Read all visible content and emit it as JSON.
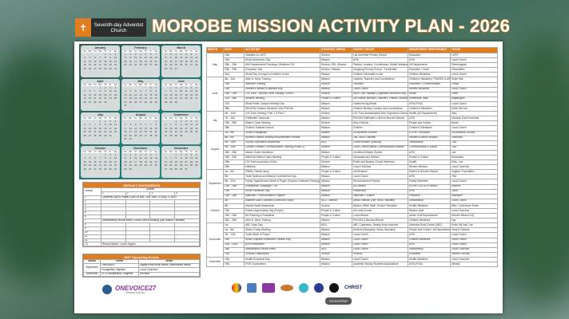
{
  "header": {
    "logo_text": "Seventh-day Adventist Church",
    "title": "MOROBE MISSION ACTIVITY PLAN - 2026"
  },
  "calendar": {
    "weekdays": [
      "Su",
      "Mo",
      "Tu",
      "We",
      "Th",
      "Fr",
      "Sa"
    ],
    "months": [
      {
        "name": "January",
        "start": 4,
        "days": 31
      },
      {
        "name": "February",
        "start": 0,
        "days": 28
      },
      {
        "name": "March",
        "start": 0,
        "days": 31
      },
      {
        "name": "April",
        "start": 3,
        "days": 30
      },
      {
        "name": "May",
        "start": 5,
        "days": 31
      },
      {
        "name": "June",
        "start": 1,
        "days": 30
      },
      {
        "name": "July",
        "start": 3,
        "days": 31
      },
      {
        "name": "August",
        "start": 6,
        "days": 31
      },
      {
        "name": "September",
        "start": 2,
        "days": 30
      },
      {
        "name": "October",
        "start": 4,
        "days": 31
      },
      {
        "name": "November",
        "start": 0,
        "days": 30
      },
      {
        "name": "December",
        "start": 2,
        "days": 31
      }
    ]
  },
  "default_days": {
    "title": "DEFAULT DAYS/WEEKS",
    "lesson_label": "Lesson",
    "quarter_label": "Quarter",
    "quarters": [
      "1",
      "2",
      "3",
      "4"
    ],
    "rows": [
      "Quarterly Day of Prayer (Qtrs 28 Mar; 14th June; 31 Aug; 21 Nov)",
      "",
      "",
      "",
      "",
      "",
      "Stewardship Revival week | Local Church Auditing (Lae District, Nawaeb)",
      "",
      "",
      "",
      "",
      "",
      "Revival Week / Lord's Supper"
    ]
  },
  "upcoming": {
    "title": "2027 Upcoming Events",
    "headers": [
      "Month",
      "Event",
      "Venue"
    ],
    "rows": [
      {
        "month": "September",
        "event": "OneVoice27",
        "venue": "Digital/Print/Social Media, Mainstream Media"
      },
      {
        "month": "",
        "event": "Evangelism, Baptism",
        "venue": "Local Churches"
      },
      {
        "month": "December",
        "event": "ECS Discipleship Congress",
        "venue": "Bomana"
      }
    ]
  },
  "onevoice": {
    "name": "ONEVOICE27",
    "tagline": "MISSION FOR ALL"
  },
  "table": {
    "headers": [
      "MONTH",
      "DATE",
      "ACTIVITIES",
      "STRATEGY ARENA",
      "TARGET GROUP",
      "DEPARTMENT RESPONSIBLE",
      "VENUE"
    ],
    "groups": [
      {
        "month": "May",
        "rows": [
          [
            "12th",
            "Visitation to LAPS",
            "Service",
            "Lae Adventist Primary School",
            "Education",
            "LAPS"
          ],
          [
            "16th",
            "World Adventurer Day",
            "Mission",
            "AYM",
            "AYM",
            "Local Church"
          ],
          [
            "18th - 20th",
            "AIM Departmental Trainings ( Markham 7&)",
            "Service, NDL, Mission",
            "Pastors, Leaders, Coordinators, Health Ambassadors",
            "All Departments",
            "Sirimengaran"
          ],
          [
            "20th - 29th",
            "Education Visit",
            "Service / Mission",
            "Sangiang Primary School - Finschaffen",
            "Education / Youth",
            "Finschaffen"
          ],
          [
            "31st",
            "World Day of prayer for children at risk",
            "Mission",
            "Children Vulnerable to risk",
            "Children Ministries",
            "Local Church"
          ]
        ]
      },
      {
        "month": "June",
        "rows": [
          [
            "8th - 11th",
            "Alive in Jesus Training",
            "Mission",
            "Leaders, Teachers and Coordinators",
            "Children's Ministries / PMS/DS & AIM",
            "Smile Hall"
          ],
          [
            "13th",
            "Inservice Training",
            "Service",
            "Teachers",
            "Education / Communication",
            "Virtual"
          ],
          [
            "13th",
            "Women's Ministry Emphasis Day",
            "Mission",
            "Local Church",
            "Women Ministries",
            "Local Church"
          ],
          [
            "15th - 19th",
            "10X Train - Second Level Training / Level 2",
            "Service",
            "Huon, Lae, Nawaeb (Organised churches only)",
            "Health",
            "Smile"
          ],
          [
            "21st - 26th",
            "Workers Meeting",
            "People & Culture",
            "All Fulltime Workers (Teachers, Pastors, Ministers)",
            "Secretariat Team",
            "Bagtangwei"
          ],
          [
            "27th",
            "World Public Campus Ministry Day",
            "Mission",
            "Youths/Young Adults",
            "AYM (PCM)",
            "Local Church"
          ],
          [
            "28th",
            "SEASON Children Ministries Visit PNGUM",
            "Mission",
            "Children Ministry Leaders and Coordinators",
            "Children's Ministries",
            "Smile 4M Hall"
          ]
        ]
      },
      {
        "month": "July",
        "rows": [
          [
            "6th - 10th",
            "10X Train Training / Part 1 & Part 2",
            "Service",
            "10X Train Ambassadors from Organized Churches",
            "Health (All Departments)",
            "Wau"
          ],
          [
            "7th - 11th",
            "Pathfinder Camporee",
            "Mission",
            "PNGUM Pathfinder Loft from Morobe Mission",
            "AYM",
            "Morasia, East Indonesia"
          ],
          [
            "20th - 25th",
            "District Camp Meeting",
            "Service",
            "Wau & Bulolo",
            "People and Culture",
            "Bulolo"
          ],
          [
            "25th",
            "Children Sabbath School",
            "Mission",
            "Children",
            "Children's Ministries",
            "Local Church"
          ]
        ]
      },
      {
        "month": "August",
        "rows": [
          [
            "3rd - 8th",
            "School Evangelism",
            "Mission",
            "All Adventist Schools",
            "EGPM / Education",
            "All Adventist Schools"
          ],
          [
            "6th - 8th",
            "Women/Children Ministry Empowerment Retreat",
            "Mission",
            "Lae, Huon, Nawaeb",
            "Women/Children Ministry",
            "Gabensis"
          ],
          [
            "9th - 16th",
            "Cocoa Corporation Awareness",
            "NDC",
            "Cocoa farmers (Districts)",
            "Stewardship",
            "TBA"
          ],
          [
            "9th - 14th",
            "Content Creation Communication Training (Phase 1)",
            "Service",
            "Local Church/District Communication leaders",
            "Communication & Media",
            "TBA"
          ],
          [
            "16th - 18th",
            "Master Guide Investiture",
            "Mission",
            "Combined Master Guides",
            "AYM",
            "Lae"
          ],
          [
            "16th - 20th",
            "MMAGW District Camp Meeting",
            "People & Culture",
            "Morawaka and Zimbari",
            "People & Culture",
            "Morawaka"
          ],
          [
            "29th",
            "10X Train launching in Eriku",
            "Service",
            "Public and Nearby Church Members",
            "Health",
            "Eriku, Lae"
          ],
          [
            "29th",
            "enditnow",
            "Mission",
            "Local Churches",
            "Women Ministry",
            "Local Churches"
          ]
        ]
      },
      {
        "month": "September",
        "rows": [
          [
            "1st - 5th",
            "FIBIDU District camp",
            "People & Culture",
            "All Members",
            "District & Morobe Mission",
            "Sagilas, Finschaffen"
          ],
          [
            "5th",
            "Youth Spiritual and Mission Commitment Day",
            "Mission",
            "Local Church",
            "AYM",
            "TBA"
          ],
          [
            "6th - 12th",
            "Family Togetherness Week of Prayer (Pastors Celebrant Training)",
            "Mission",
            "Recommended Pastors",
            "Family Ministries",
            "Local Church"
          ],
          [
            "13th - 26th",
            "Evangelistic Campaign / TBI",
            "Mission",
            "All Districts",
            "EGPM / EDCs & Pastors",
            "Districts"
          ],
          [
            "19th",
            "World Pathfinder Day",
            "Mission",
            "Pathfinders",
            "AYM",
            "Local"
          ],
          [
            "20th - 26th",
            "Markham 1 Reconciliation Program",
            "Mission",
            "Markham 1 District",
            "President",
            "Antiragen"
          ]
        ]
      },
      {
        "month": "October",
        "rows": [
          [
            "4th",
            "Baseline Data Collection (Livelihood Skills)",
            "NDC / Mission",
            "Urban Districts (Lae, Huon, Nawaeb)",
            "Stewardship",
            "Local Church"
          ],
          [
            "8th",
            "Mental Health Awareness",
            "Service",
            "Mission Office Staff / School Principals",
            "Health Ministries",
            "Mille, Conference Room"
          ],
          [
            "10th",
            "Pastors Appreciation day (Prayer)",
            "People & Culture",
            "All Local Church",
            "Mission wide",
            "Local Churches"
          ],
          [
            "12th - 16th",
            "Re-Planning & Evaluation",
            "People & Culture",
            "Local Mission",
            "Admin & All Departments",
            "Morobe Mission HQ"
          ],
          [
            "26th - 30th",
            "Alive in Jesus Training",
            "Mission",
            "PNGUM & Morobe Mission",
            "Children Ministries",
            "Lae"
          ]
        ]
      },
      {
        "month": "November",
        "rows": [
          [
            "1st",
            "ABC Open Day",
            "NDC",
            "ABC Customers, Nearby local churches",
            "Adventist Book Centre (ABC)",
            "Smile 4M Hall, Lae"
          ],
          [
            "1st - 8th",
            "District Camp Meeting",
            "Mission",
            "Districts (Wanyamp, Wadu, Bamasiri)",
            "People and Culture / All Departments",
            "Various Districts"
          ],
          [
            "7th - 14th",
            "Youth Week of Prayer",
            "Mission",
            "Local Church",
            "AYM",
            "Local Church"
          ],
          [
            "14th",
            "World Orphans Vulnerable Children Day",
            "Mission",
            "Local Church",
            "Children Ministries",
            "Local Church"
          ],
          [
            "21st - 22nd",
            "AYM Investitures",
            "Mission",
            "Local Church",
            "AYM",
            "Local Church"
          ],
          [
            "28th",
            "Stewardship Revival Week",
            "NDC",
            "Local Church",
            "Stewardship",
            "Local Churches"
          ],
          [
            "TBA",
            "Schools Graduations",
            "Service",
            "Schools",
            "Education",
            "Various Schools"
          ]
        ]
      },
      {
        "month": "December",
        "rows": [
          [
            "12th",
            "Health Emphasis Day",
            "Mission",
            "Local Church",
            "Health Ministries",
            "Local Churches"
          ],
          [
            "TBA",
            "PCM Conventions",
            "Mission",
            "Adventist Tertiary Students Associations",
            "AYM (PCM)",
            "Wewak"
          ]
        ]
      }
    ]
  },
  "footer": {
    "christ_logo": "CHRIST",
    "tooltip": "Screenshot"
  },
  "colors": {
    "accent": "#e27d1f",
    "teal": "#1f7a78"
  }
}
